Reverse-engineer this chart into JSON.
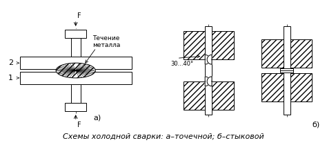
{
  "title": "Схемы холодной сварки: а–точечной; б–стыковой",
  "bg_color": "#ffffff",
  "label_a": "а)",
  "label_b": "б)",
  "label_F_top": "F",
  "label_F_bot": "F",
  "label_2": "2",
  "label_1": "1",
  "label_flow": "Течение\nметалла",
  "label_angle": "30...40°",
  "line_color": "#000000"
}
